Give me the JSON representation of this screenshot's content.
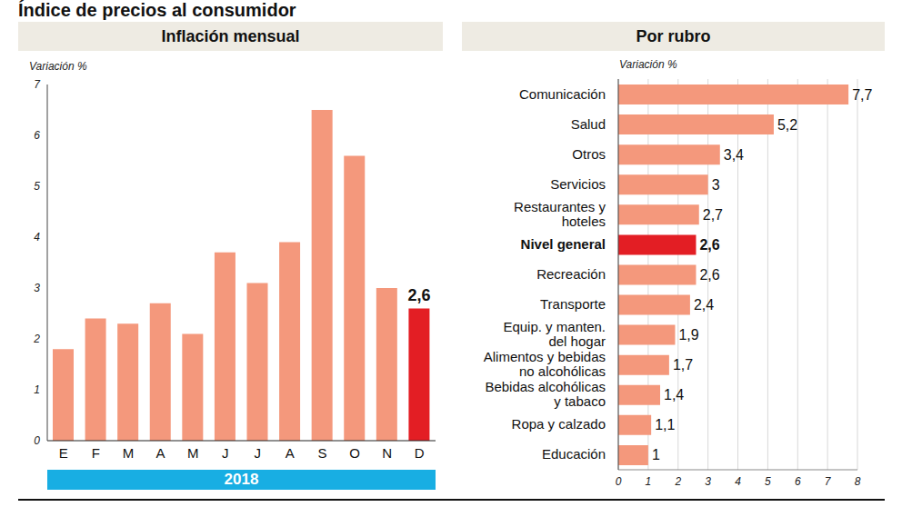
{
  "title": "Índice de precios al consumidor",
  "chart_data": [
    {
      "type": "bar",
      "title": "Inflación mensual",
      "ylabel": "Variación %",
      "xlabel": "2018",
      "categories": [
        "E",
        "F",
        "M",
        "A",
        "M",
        "J",
        "J",
        "A",
        "S",
        "O",
        "N",
        "D"
      ],
      "values": [
        1.8,
        2.4,
        2.3,
        2.7,
        2.1,
        3.7,
        3.1,
        3.9,
        6.5,
        5.6,
        3.0,
        2.6
      ],
      "colors": [
        "#f4987c",
        "#f4987c",
        "#f4987c",
        "#f4987c",
        "#f4987c",
        "#f4987c",
        "#f4987c",
        "#f4987c",
        "#f4987c",
        "#f4987c",
        "#f4987c",
        "#e31e24"
      ],
      "ylim": [
        0,
        7
      ],
      "yticks": [
        0,
        1,
        2,
        3,
        4,
        5,
        6,
        7
      ],
      "grid": false,
      "data_labels": true,
      "value_labels": [
        null,
        null,
        null,
        null,
        null,
        null,
        null,
        null,
        null,
        null,
        null,
        "2,6"
      ]
    },
    {
      "type": "bar",
      "orientation": "horizontal",
      "title": "Por rubro",
      "xlabel": "Variación %",
      "categories": [
        "Comunicación",
        "Salud",
        "Otros",
        "Servicios",
        "Restaurantes y hoteles",
        "Nivel general",
        "Recreación",
        "Transporte",
        "Equip. y manten. del hogar",
        "Alimentos y bebidas no alcohólicas",
        "Bebidas alcohólicas y tabaco",
        "Ropa y calzado",
        "Educación"
      ],
      "values": [
        7.7,
        5.2,
        3.4,
        3,
        2.7,
        2.6,
        2.6,
        2.4,
        1.9,
        1.7,
        1.4,
        1.1,
        1
      ],
      "value_labels": [
        "7,7",
        "5,2",
        "3,4",
        "3",
        "2,7",
        "2,6",
        "2,6",
        "2,4",
        "1,9",
        "1,7",
        "1,4",
        "1,1",
        "1"
      ],
      "colors": [
        "#f4987c",
        "#f4987c",
        "#f4987c",
        "#f4987c",
        "#f4987c",
        "#e31e24",
        "#f4987c",
        "#f4987c",
        "#f4987c",
        "#f4987c",
        "#f4987c",
        "#f4987c",
        "#f4987c"
      ],
      "xlim": [
        0,
        8
      ],
      "xticks": [
        0,
        1,
        2,
        3,
        4,
        5,
        6,
        7,
        8
      ],
      "grid": true,
      "data_labels": true
    }
  ]
}
